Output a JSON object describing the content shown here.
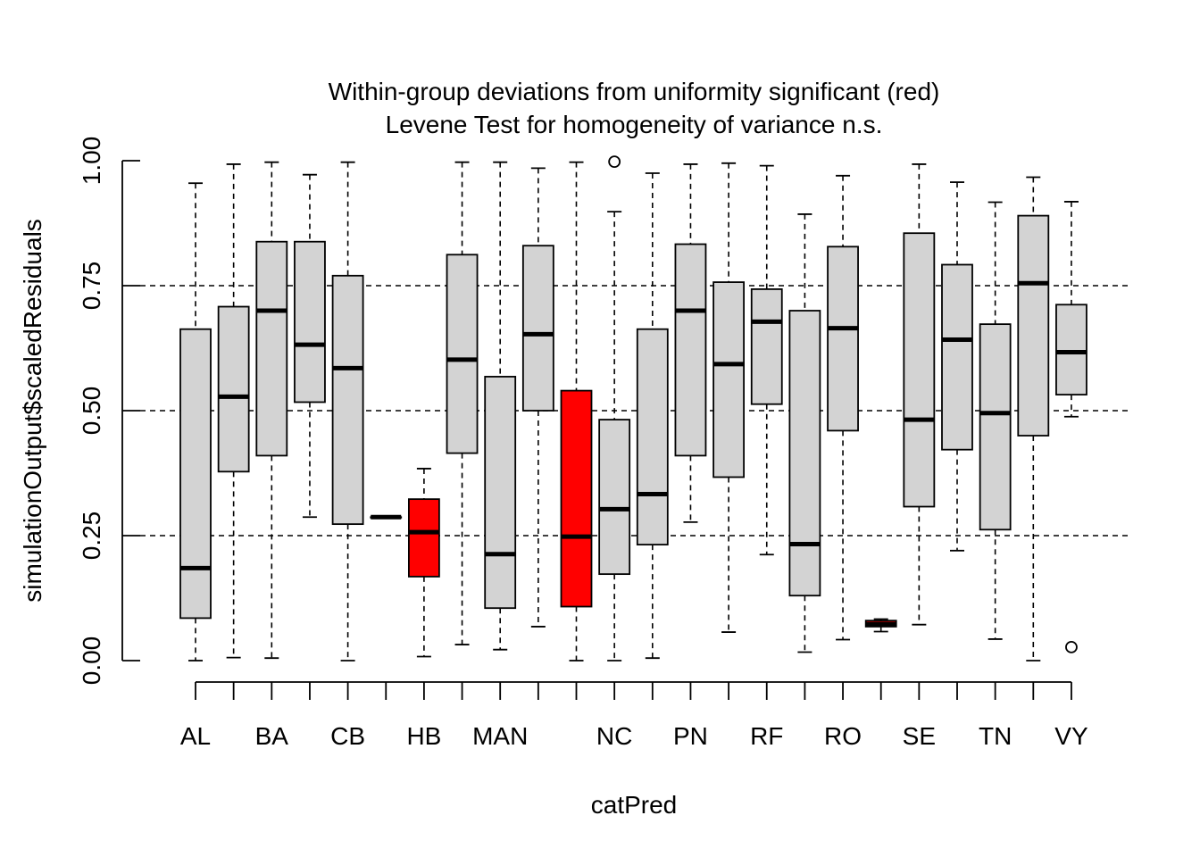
{
  "chart_data": {
    "type": "boxplot",
    "title_line1": "Within-group deviations from uniformity significant (red)",
    "title_line2": "Levene Test for homogeneity of variance n.s.",
    "xlabel": "catPred",
    "ylabel": "simulationOutput$scaledResiduals",
    "ylim": [
      0,
      1
    ],
    "yticks": [
      "0.00",
      "0.25",
      "0.50",
      "0.75",
      "1.00"
    ],
    "reference_lines": [
      0.25,
      0.5,
      0.75
    ],
    "groups": [
      {
        "name": "AL",
        "show_label": true,
        "whisker_low": 0.0,
        "q1": 0.085,
        "median": 0.185,
        "q3": 0.663,
        "whisker_high": 0.955,
        "outliers": [],
        "significant": false
      },
      {
        "name": "",
        "show_label": false,
        "whisker_low": 0.006,
        "q1": 0.378,
        "median": 0.528,
        "q3": 0.708,
        "whisker_high": 0.993,
        "outliers": [],
        "significant": false
      },
      {
        "name": "BA",
        "show_label": true,
        "whisker_low": 0.005,
        "q1": 0.41,
        "median": 0.7,
        "q3": 0.838,
        "whisker_high": 0.997,
        "outliers": [],
        "significant": false
      },
      {
        "name": "",
        "show_label": false,
        "whisker_low": 0.287,
        "q1": 0.517,
        "median": 0.632,
        "q3": 0.838,
        "whisker_high": 0.972,
        "outliers": [],
        "significant": false
      },
      {
        "name": "CB",
        "show_label": true,
        "whisker_low": 0.0,
        "q1": 0.273,
        "median": 0.585,
        "q3": 0.77,
        "whisker_high": 0.997,
        "outliers": [],
        "significant": false
      },
      {
        "name": "",
        "show_label": false,
        "whisker_low": 0.287,
        "q1": 0.287,
        "median": 0.287,
        "q3": 0.287,
        "whisker_high": 0.287,
        "outliers": [],
        "significant": false
      },
      {
        "name": "HB",
        "show_label": true,
        "whisker_low": 0.008,
        "q1": 0.168,
        "median": 0.257,
        "q3": 0.323,
        "whisker_high": 0.384,
        "outliers": [],
        "significant": true
      },
      {
        "name": "",
        "show_label": false,
        "whisker_low": 0.032,
        "q1": 0.415,
        "median": 0.602,
        "q3": 0.812,
        "whisker_high": 0.997,
        "outliers": [],
        "significant": false
      },
      {
        "name": "MAN",
        "show_label": true,
        "whisker_low": 0.022,
        "q1": 0.105,
        "median": 0.213,
        "q3": 0.568,
        "whisker_high": 0.997,
        "outliers": [],
        "significant": false
      },
      {
        "name": "",
        "show_label": false,
        "whisker_low": 0.068,
        "q1": 0.5,
        "median": 0.653,
        "q3": 0.83,
        "whisker_high": 0.985,
        "outliers": [],
        "significant": false
      },
      {
        "name": "",
        "show_label": false,
        "whisker_low": 0.0,
        "q1": 0.108,
        "median": 0.248,
        "q3": 0.54,
        "whisker_high": 0.997,
        "outliers": [],
        "significant": true
      },
      {
        "name": "NC",
        "show_label": true,
        "whisker_low": 0.0,
        "q1": 0.173,
        "median": 0.303,
        "q3": 0.482,
        "whisker_high": 0.898,
        "outliers": [
          0.998
        ],
        "significant": false
      },
      {
        "name": "",
        "show_label": false,
        "whisker_low": 0.005,
        "q1": 0.232,
        "median": 0.333,
        "q3": 0.663,
        "whisker_high": 0.975,
        "outliers": [],
        "significant": false
      },
      {
        "name": "PN",
        "show_label": true,
        "whisker_low": 0.277,
        "q1": 0.41,
        "median": 0.7,
        "q3": 0.833,
        "whisker_high": 0.993,
        "outliers": [],
        "significant": false
      },
      {
        "name": "",
        "show_label": false,
        "whisker_low": 0.057,
        "q1": 0.367,
        "median": 0.593,
        "q3": 0.757,
        "whisker_high": 0.995,
        "outliers": [],
        "significant": false
      },
      {
        "name": "RF",
        "show_label": true,
        "whisker_low": 0.212,
        "q1": 0.513,
        "median": 0.678,
        "q3": 0.743,
        "whisker_high": 0.99,
        "outliers": [],
        "significant": false
      },
      {
        "name": "",
        "show_label": false,
        "whisker_low": 0.017,
        "q1": 0.13,
        "median": 0.233,
        "q3": 0.7,
        "whisker_high": 0.893,
        "outliers": [],
        "significant": false
      },
      {
        "name": "RO",
        "show_label": true,
        "whisker_low": 0.042,
        "q1": 0.46,
        "median": 0.665,
        "q3": 0.828,
        "whisker_high": 0.97,
        "outliers": [],
        "significant": false
      },
      {
        "name": "",
        "show_label": false,
        "whisker_low": 0.058,
        "q1": 0.068,
        "median": 0.073,
        "q3": 0.08,
        "whisker_high": 0.083,
        "outliers": [],
        "significant": true
      },
      {
        "name": "SE",
        "show_label": true,
        "whisker_low": 0.072,
        "q1": 0.308,
        "median": 0.482,
        "q3": 0.855,
        "whisker_high": 0.993,
        "outliers": [],
        "significant": false
      },
      {
        "name": "",
        "show_label": false,
        "whisker_low": 0.22,
        "q1": 0.422,
        "median": 0.642,
        "q3": 0.792,
        "whisker_high": 0.957,
        "outliers": [],
        "significant": false
      },
      {
        "name": "TN",
        "show_label": true,
        "whisker_low": 0.043,
        "q1": 0.262,
        "median": 0.495,
        "q3": 0.673,
        "whisker_high": 0.917,
        "outliers": [],
        "significant": false
      },
      {
        "name": "",
        "show_label": false,
        "whisker_low": 0.0,
        "q1": 0.45,
        "median": 0.755,
        "q3": 0.89,
        "whisker_high": 0.967,
        "outliers": [],
        "significant": false
      },
      {
        "name": "VY",
        "show_label": true,
        "whisker_low": 0.488,
        "q1": 0.532,
        "median": 0.617,
        "q3": 0.712,
        "whisker_high": 0.918,
        "outliers": [
          0.027
        ],
        "significant": false
      }
    ],
    "colors": {
      "box_fill": "#d3d3d3",
      "significant_fill": "#ff0000",
      "title_highlight": "#ff0000",
      "stroke": "#000000"
    },
    "grid": false,
    "legend": "none"
  }
}
